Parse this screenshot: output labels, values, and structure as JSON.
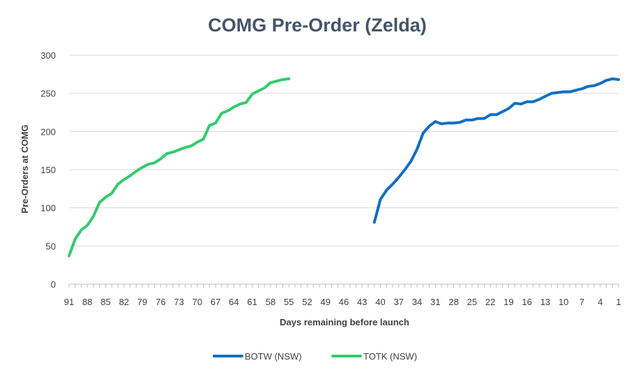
{
  "chart_data": {
    "type": "line",
    "title": "COMG Pre-Order (Zelda)",
    "xlabel": "Days remaining before launch",
    "ylabel": "Pre-Orders at COMG",
    "ylim": [
      0,
      300
    ],
    "yticks": [
      0,
      50,
      100,
      150,
      200,
      250,
      300
    ],
    "xlim": [
      91,
      1
    ],
    "x_reversed": true,
    "xticks": [
      91,
      88,
      85,
      82,
      79,
      76,
      73,
      70,
      67,
      64,
      61,
      58,
      55,
      52,
      49,
      46,
      43,
      40,
      37,
      34,
      31,
      28,
      25,
      22,
      19,
      16,
      13,
      10,
      7,
      4,
      1
    ],
    "grid": "horizontal",
    "legend_position": "bottom",
    "series": [
      {
        "name": "BOTW (NSW)",
        "color": "#0f6fc6",
        "x": [
          41,
          40,
          39,
          38,
          37,
          36,
          35,
          34,
          33,
          32,
          31,
          30,
          29,
          28,
          27,
          26,
          25,
          24,
          23,
          22,
          21,
          20,
          19,
          18,
          17,
          16,
          15,
          14,
          13,
          12,
          11,
          10,
          9,
          8,
          7,
          6,
          5,
          4,
          3,
          2,
          1
        ],
        "y": [
          81,
          111,
          123,
          131,
          140,
          150,
          161,
          177,
          198,
          207,
          213,
          210,
          211,
          211,
          212,
          215,
          215,
          217,
          217,
          222,
          222,
          226,
          230,
          237,
          236,
          239,
          239,
          242,
          246,
          250,
          251,
          252,
          252,
          254,
          256,
          259,
          260,
          263,
          267,
          269,
          268
        ]
      },
      {
        "name": "TOTK (NSW)",
        "color": "#33cc6c",
        "x": [
          91,
          90,
          89,
          88,
          87,
          86,
          85,
          84,
          83,
          82,
          81,
          80,
          79,
          78,
          77,
          76,
          75,
          74,
          73,
          72,
          71,
          70,
          69,
          68,
          67,
          66,
          65,
          64,
          63,
          62,
          61,
          60,
          59,
          58,
          57,
          56,
          55
        ],
        "y": [
          37,
          59,
          71,
          77,
          89,
          107,
          114,
          119,
          131,
          137,
          142,
          148,
          153,
          157,
          159,
          164,
          171,
          173,
          176,
          179,
          181,
          186,
          190,
          208,
          211,
          224,
          227,
          232,
          236,
          238,
          249,
          253,
          257,
          264,
          266,
          268,
          269
        ]
      }
    ]
  }
}
